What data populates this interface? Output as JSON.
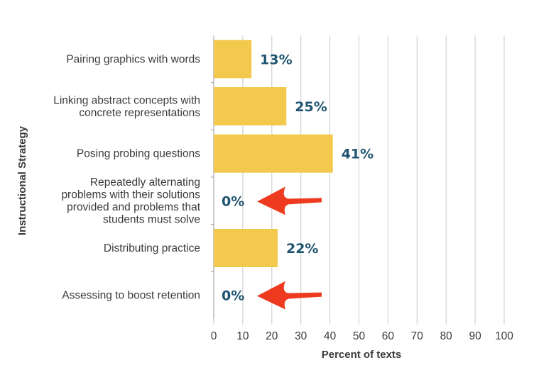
{
  "chart_data": {
    "type": "bar",
    "orientation": "horizontal",
    "categories": [
      [
        "Pairing graphics with words"
      ],
      [
        "Linking abstract concepts with",
        "concrete representations"
      ],
      [
        "Posing probing questions"
      ],
      [
        "Repeatedly alternating",
        "problems with their solutions",
        "provided and problems that",
        "students must solve"
      ],
      [
        "Distributing practice"
      ],
      [
        "Assessing to boost retention"
      ]
    ],
    "values": [
      13,
      25,
      41,
      0,
      22,
      0
    ],
    "value_labels": [
      "13%",
      "25%",
      "41%",
      "0%",
      "22%",
      "0%"
    ],
    "xlabel": "Percent of texts",
    "ylabel": "Instructional Strategy",
    "xlim": [
      0,
      100
    ],
    "xticks": [
      "0",
      "10",
      "20",
      "30",
      "40",
      "50",
      "60",
      "70",
      "80",
      "90",
      "100"
    ],
    "grid": "vertical",
    "highlight_arrows_on": [
      "Repeatedly alternating problems with their solutions provided and problems that students must solve",
      "Assessing to boost retention"
    ],
    "colors": {
      "bar": "#f2c94c",
      "value_text": "#1f5470",
      "arrow": "#ee3a1f",
      "grid": "#c8c8c8",
      "text": "#3a3a3a"
    }
  }
}
